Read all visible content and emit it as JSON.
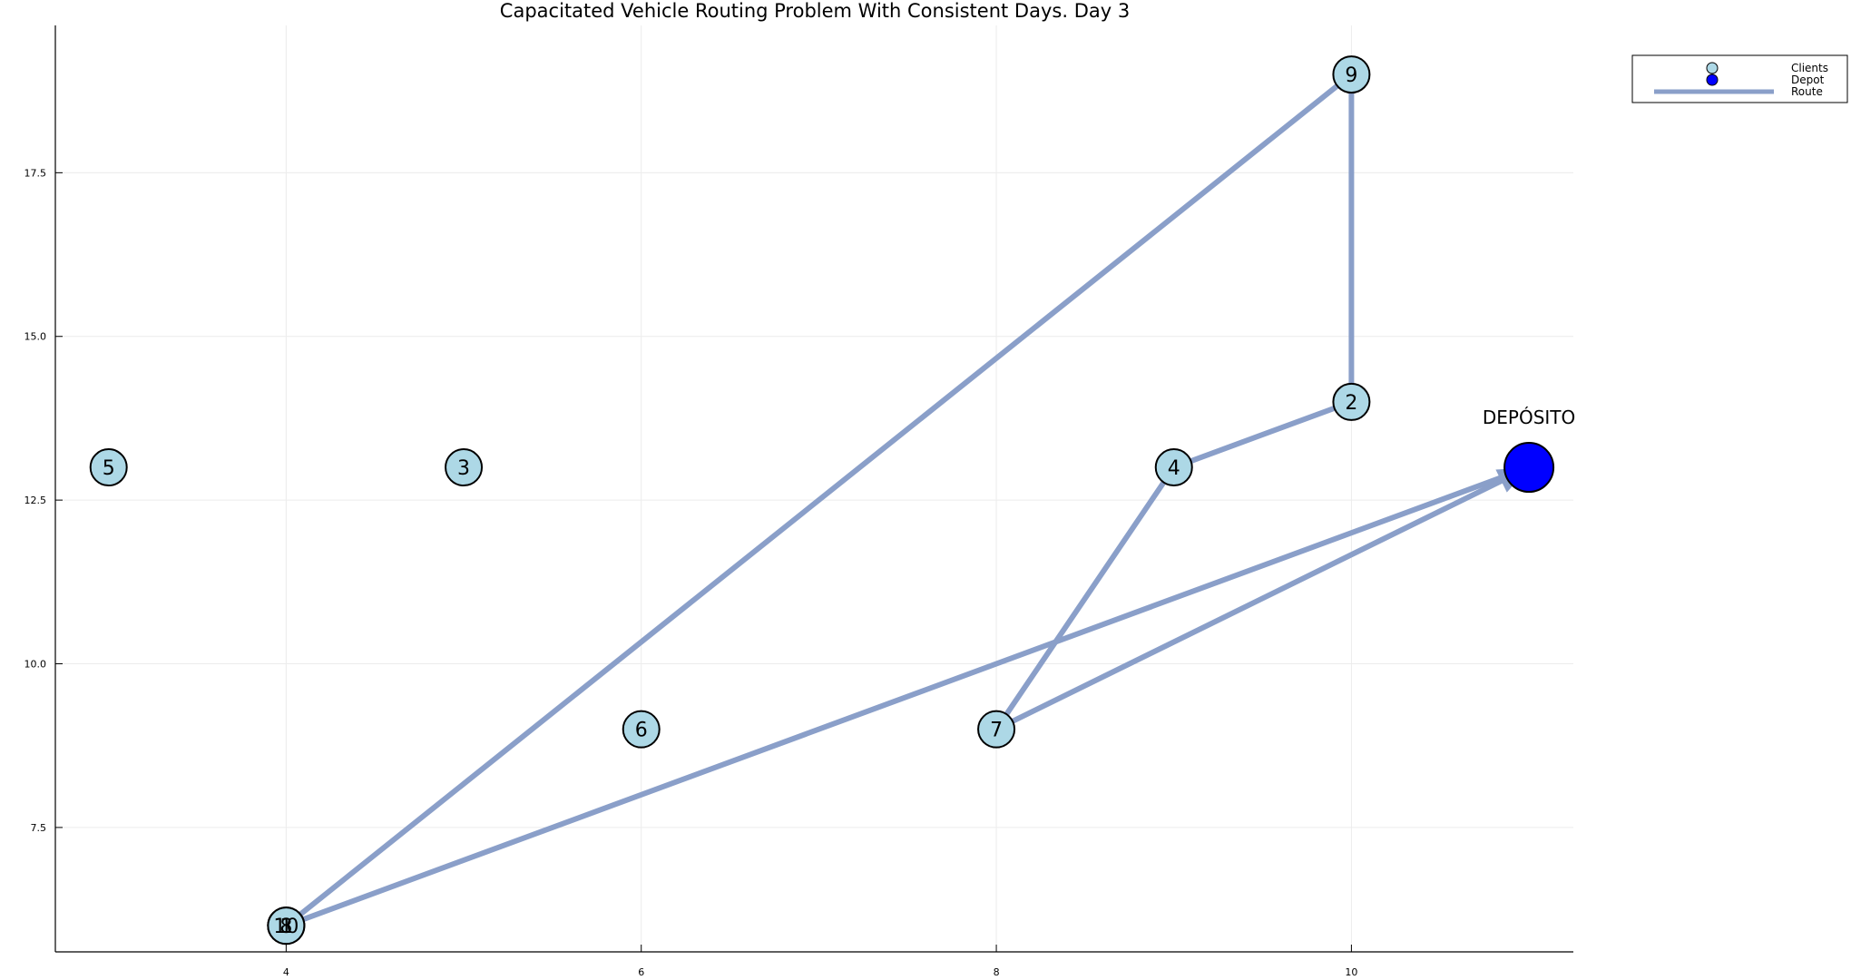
{
  "chart_data": {
    "type": "scatter",
    "title": "Capacitated Vehicle Routing Problem With Consistent Days. Day 3",
    "xlabel": "",
    "ylabel": "",
    "xlim": [
      2.7,
      11.25
    ],
    "ylim": [
      5.6,
      19.75
    ],
    "x_ticks": [
      4,
      6,
      8,
      10
    ],
    "x_tick_labels": [
      "4",
      "6",
      "8",
      "10"
    ],
    "y_ticks": [
      7.5,
      10.0,
      12.5,
      15.0,
      17.5
    ],
    "y_tick_labels": [
      "7.5",
      "10.0",
      "12.5",
      "15.0",
      "17.5"
    ],
    "grid": true,
    "legend_placement": "top-right-outside",
    "legend": [
      {
        "label": "Clients",
        "kind": "marker",
        "color": "#add8e6"
      },
      {
        "label": "Depot",
        "kind": "marker",
        "color": "#0000ff"
      },
      {
        "label": "Route",
        "kind": "line",
        "color": "#8a9fc9"
      }
    ],
    "clients": [
      {
        "label": "1",
        "x": 4,
        "y": 6
      },
      {
        "label": "2",
        "x": 10,
        "y": 14
      },
      {
        "label": "3",
        "x": 5,
        "y": 13
      },
      {
        "label": "4",
        "x": 9,
        "y": 13
      },
      {
        "label": "5",
        "x": 3,
        "y": 13
      },
      {
        "label": "6",
        "x": 6,
        "y": 9
      },
      {
        "label": "7",
        "x": 8,
        "y": 9
      },
      {
        "label": "8",
        "x": 4,
        "y": 6
      },
      {
        "label": "9",
        "x": 10,
        "y": 19
      },
      {
        "label": "10",
        "x": 4,
        "y": 6
      }
    ],
    "depot": {
      "label": "DEPÓSITO",
      "x": 11,
      "y": 13
    },
    "route": [
      {
        "x": 11,
        "y": 13
      },
      {
        "x": 4,
        "y": 6
      },
      {
        "x": 10,
        "y": 19
      },
      {
        "x": 10,
        "y": 14
      },
      {
        "x": 9,
        "y": 13
      },
      {
        "x": 8,
        "y": 9
      },
      {
        "x": 11,
        "y": 13
      }
    ],
    "colors": {
      "client_fill": "#add8e6",
      "depot_fill": "#0000ff",
      "route": "#8a9fc9",
      "grid": "#ececec"
    }
  }
}
